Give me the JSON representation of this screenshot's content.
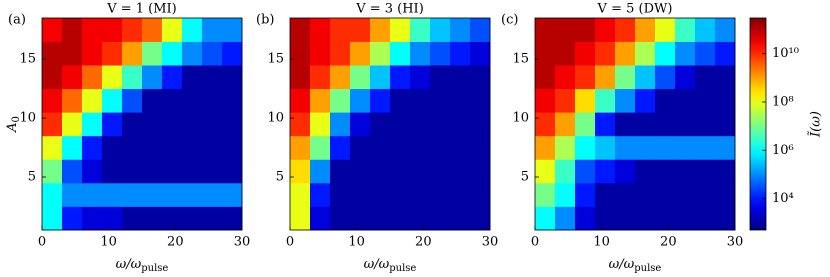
{
  "chart_data": [
    {
      "type": "heatmap",
      "panel_label": "(a)",
      "title": "V = 1 (MI)",
      "xlabel": "ω/ω",
      "xlabel_sub": "pulse",
      "ylabel": "A",
      "ylabel_sub": "0",
      "xlim": [
        0,
        30
      ],
      "ylim": [
        0.5,
        18.5
      ],
      "xticks": [
        0,
        10,
        20,
        30
      ],
      "yticks": [
        5,
        10,
        15
      ],
      "xbins": [
        0,
        3,
        6,
        9,
        12,
        15,
        18,
        21,
        24,
        27,
        30
      ],
      "ybins": [
        0.5,
        2.5,
        4.5,
        6.5,
        8.5,
        10.5,
        12.5,
        14.5,
        16.5,
        18.5
      ],
      "z": [
        [
          1000000.0,
          10000.0,
          3000.0,
          3000.0,
          1000.0,
          1000.0,
          1000.0,
          1000.0,
          1000.0,
          1000.0
        ],
        [
          1000000.0,
          100000.0,
          100000.0,
          100000.0,
          100000.0,
          100000.0,
          100000.0,
          100000.0,
          100000.0,
          100000.0
        ],
        [
          10000000.0,
          30000.0,
          3000.0,
          1000.0,
          1000.0,
          1000.0,
          1000.0,
          1000.0,
          1000.0,
          1000.0
        ],
        [
          100000000.0,
          1000000.0,
          10000.0,
          1000.0,
          1000.0,
          1000.0,
          1000.0,
          1000.0,
          1000.0,
          1000.0
        ],
        [
          10000000000.0,
          100000000.0,
          1000000.0,
          10000.0,
          1000.0,
          1000.0,
          1000.0,
          1000.0,
          1000.0,
          1000.0
        ],
        [
          30000000000.0,
          3000000000.0,
          100000000.0,
          1000000.0,
          30000.0,
          1000.0,
          1000.0,
          1000.0,
          1000.0,
          1000.0
        ],
        [
          100000000000.0,
          30000000000.0,
          3000000000.0,
          100000000.0,
          3000000.0,
          100000.0,
          10000.0,
          1000.0,
          1000.0,
          1000.0
        ],
        [
          100000000000.0,
          100000000000.0,
          30000000000.0,
          10000000000.0,
          1000000000.0,
          10000000.0,
          1000000.0,
          100000.0,
          30000.0,
          10000.0
        ],
        [
          30000000000.0,
          100000000000.0,
          30000000000.0,
          30000000000.0,
          10000000000.0,
          3000000000.0,
          100000000.0,
          1000000.0,
          100000.0,
          100000.0
        ]
      ]
    },
    {
      "type": "heatmap",
      "panel_label": "(b)",
      "title": "V = 3 (HI)",
      "xlabel": "ω/ω",
      "xlabel_sub": "pulse",
      "xlim": [
        0,
        30
      ],
      "ylim": [
        0.5,
        18.5
      ],
      "xticks": [
        0,
        10,
        20,
        30
      ],
      "yticks": [
        5,
        10,
        15
      ],
      "xbins": [
        0,
        3,
        6,
        9,
        12,
        15,
        18,
        21,
        24,
        27,
        30
      ],
      "ybins": [
        0.5,
        2.5,
        4.5,
        6.5,
        8.5,
        10.5,
        12.5,
        14.5,
        16.5,
        18.5
      ],
      "z": [
        [
          100000000.0,
          3000.0,
          1000.0,
          1000.0,
          1000.0,
          1000.0,
          1000.0,
          1000.0,
          1000.0,
          1000.0
        ],
        [
          100000000.0,
          10000.0,
          1000.0,
          1000.0,
          1000.0,
          1000.0,
          1000.0,
          1000.0,
          1000.0,
          1000.0
        ],
        [
          300000000.0,
          100000.0,
          1000.0,
          1000.0,
          1000.0,
          1000.0,
          1000.0,
          1000.0,
          1000.0,
          1000.0
        ],
        [
          1000000000.0,
          10000000.0,
          10000.0,
          1000.0,
          1000.0,
          1000.0,
          1000.0,
          1000.0,
          1000.0,
          1000.0
        ],
        [
          10000000000.0,
          100000000.0,
          100000.0,
          3000.0,
          1000.0,
          1000.0,
          1000.0,
          1000.0,
          1000.0,
          1000.0
        ],
        [
          30000000000.0,
          1000000000.0,
          10000000.0,
          100000.0,
          10000.0,
          1000.0,
          1000.0,
          1000.0,
          1000.0,
          1000.0
        ],
        [
          100000000000.0,
          10000000000.0,
          1000000000.0,
          10000000.0,
          300000.0,
          10000.0,
          3000.0,
          1000.0,
          1000.0,
          1000.0
        ],
        [
          100000000000.0,
          30000000000.0,
          10000000000.0,
          1000000000.0,
          30000000.0,
          1000000.0,
          100000.0,
          30000.0,
          10000.0,
          3000.0
        ],
        [
          100000000000.0,
          30000000000.0,
          10000000000.0,
          10000000000.0,
          1000000000.0,
          100000000.0,
          3000000.0,
          300000.0,
          100000.0,
          30000.0
        ]
      ]
    },
    {
      "type": "heatmap",
      "panel_label": "(c)",
      "title": "V = 5 (DW)",
      "xlabel": "ω/ω",
      "xlabel_sub": "pulse",
      "xlim": [
        0,
        30
      ],
      "ylim": [
        0.5,
        18.5
      ],
      "xticks": [
        0,
        10,
        20,
        30
      ],
      "yticks": [
        5,
        10,
        15
      ],
      "xbins": [
        0,
        3,
        6,
        9,
        12,
        15,
        18,
        21,
        24,
        27,
        30
      ],
      "ybins": [
        0.5,
        2.5,
        4.5,
        6.5,
        8.5,
        10.5,
        12.5,
        14.5,
        16.5,
        18.5
      ],
      "z": [
        [
          1000000.0,
          100000.0,
          3000.0,
          1000.0,
          1000.0,
          1000.0,
          1000.0,
          1000.0,
          1000.0,
          1000.0
        ],
        [
          10000000.0,
          1000000.0,
          10000.0,
          1000.0,
          1000.0,
          1000.0,
          1000.0,
          1000.0,
          1000.0,
          1000.0
        ],
        [
          100000000.0,
          3000000.0,
          30000.0,
          10000.0,
          3000.0,
          1000.0,
          1000.0,
          1000.0,
          1000.0,
          1000.0
        ],
        [
          1000000000.0,
          30000000.0,
          1000000.0,
          300000.0,
          100000.0,
          100000.0,
          100000.0,
          100000.0,
          100000.0,
          100000.0
        ],
        [
          10000000000.0,
          1000000000.0,
          10000000.0,
          10000.0,
          1000.0,
          1000.0,
          1000.0,
          1000.0,
          1000.0,
          1000.0
        ],
        [
          30000000000.0,
          10000000000.0,
          300000000.0,
          3000000.0,
          100000.0,
          10000.0,
          1000.0,
          1000.0,
          1000.0,
          1000.0
        ],
        [
          100000000000.0,
          30000000000.0,
          10000000000.0,
          1000000000.0,
          10000000.0,
          300000.0,
          30000.0,
          3000.0,
          1000.0,
          1000.0
        ],
        [
          100000000000.0,
          100000000000.0,
          30000000000.0,
          10000000000.0,
          1000000000.0,
          30000000.0,
          1000000.0,
          100000.0,
          30000.0,
          10000.0
        ],
        [
          100000000000.0,
          100000000000.0,
          100000000000.0,
          30000000000.0,
          10000000000.0,
          1000000000.0,
          100000000.0,
          3000000.0,
          300000.0,
          100000.0
        ]
      ]
    }
  ],
  "colorbar": {
    "label": "Ĩ(ω)",
    "colormap": "jet",
    "log": true,
    "zlim": [
      500,
      300000000000
    ],
    "ticks": [
      {
        "value": 10000,
        "label": "10⁴"
      },
      {
        "value": 1000000,
        "label": "10⁶"
      },
      {
        "value": 100000000,
        "label": "10⁸"
      },
      {
        "value": 10000000000,
        "label": "10¹⁰"
      }
    ]
  }
}
